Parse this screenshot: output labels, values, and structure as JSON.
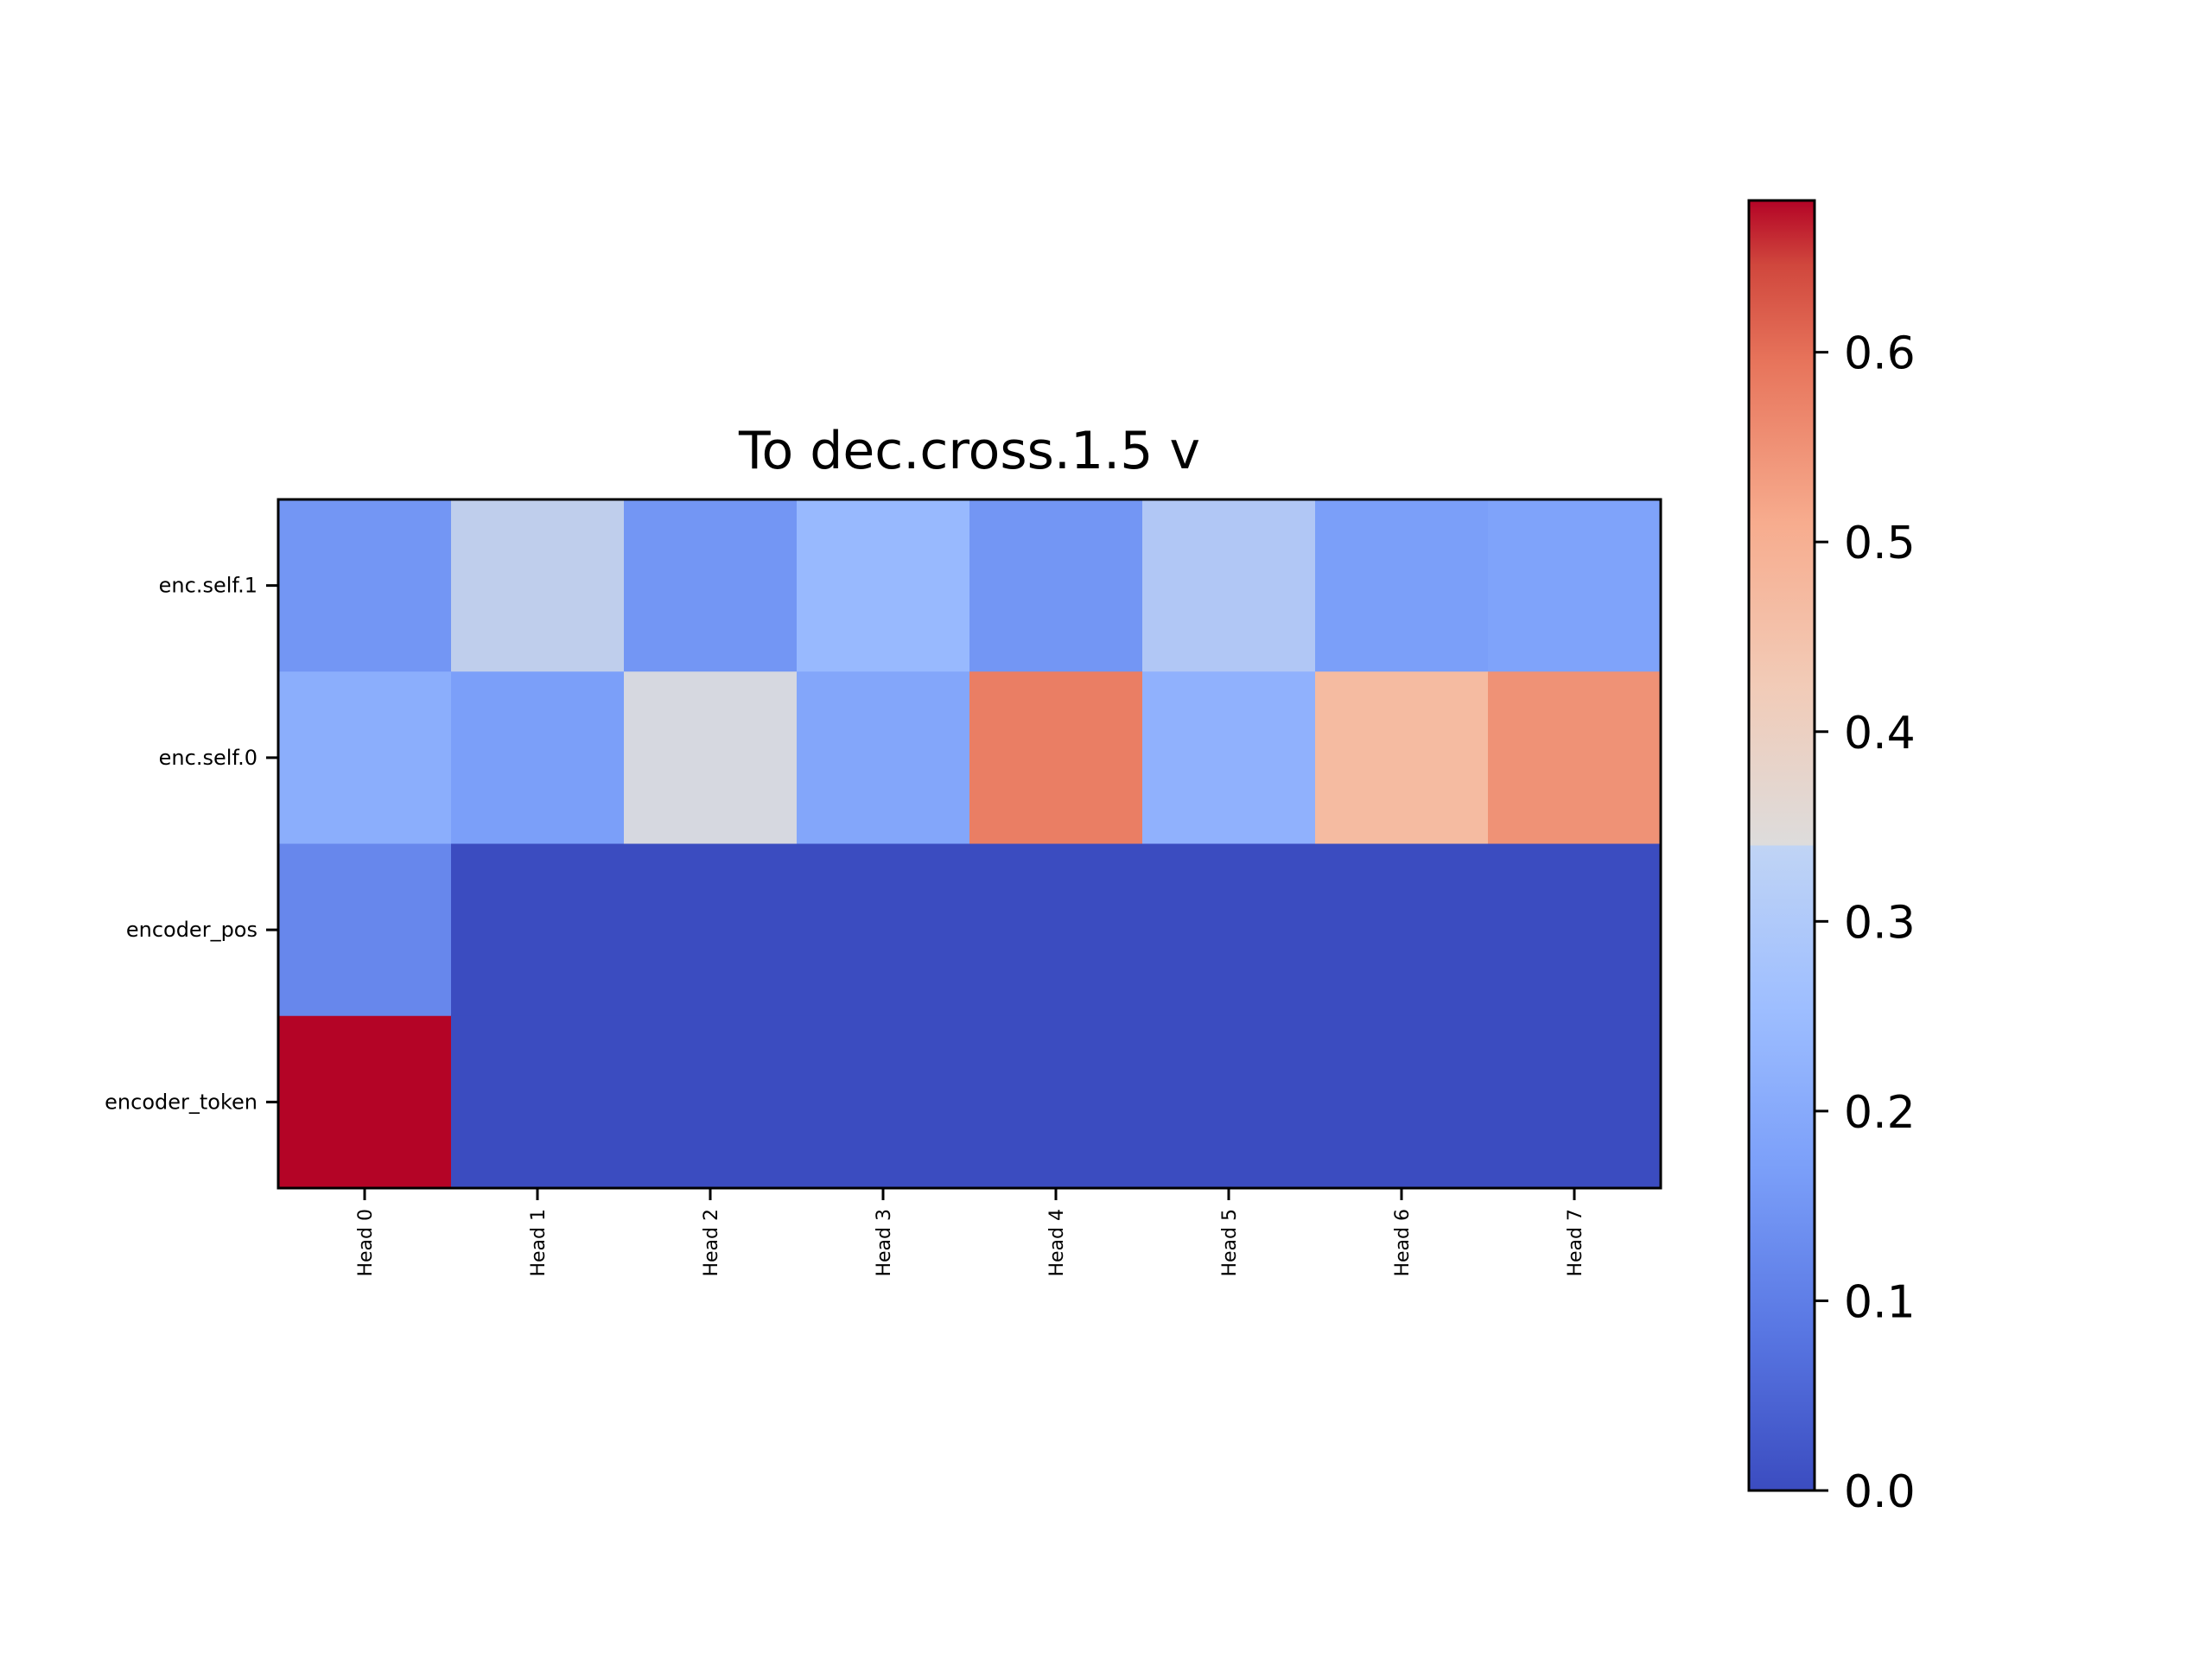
{
  "chart_data": {
    "type": "heatmap",
    "title": "To dec.cross.1.5 v",
    "xlabel": "",
    "ylabel": "",
    "x_categories": [
      "Head 0",
      "Head 1",
      "Head 2",
      "Head 3",
      "Head 4",
      "Head 5",
      "Head 6",
      "Head 7"
    ],
    "y_categories": [
      "enc.self.1",
      "enc.self.0",
      "encoder_pos",
      "encoder_token"
    ],
    "values": [
      [
        0.15,
        0.3,
        0.15,
        0.24,
        0.15,
        0.28,
        0.17,
        0.18
      ],
      [
        0.21,
        0.17,
        0.33,
        0.19,
        0.58,
        0.22,
        0.47,
        0.55
      ],
      [
        0.12,
        0.0,
        0.0,
        0.0,
        0.0,
        0.0,
        0.0,
        0.0
      ],
      [
        0.68,
        0.0,
        0.0,
        0.0,
        0.0,
        0.0,
        0.0,
        0.0
      ]
    ],
    "colormap": "coolwarm",
    "vmin": 0.0,
    "vmax": 0.68,
    "colorbar_ticks": [
      "0.0",
      "0.1",
      "0.2",
      "0.3",
      "0.4",
      "0.5",
      "0.6"
    ],
    "grid": false
  }
}
